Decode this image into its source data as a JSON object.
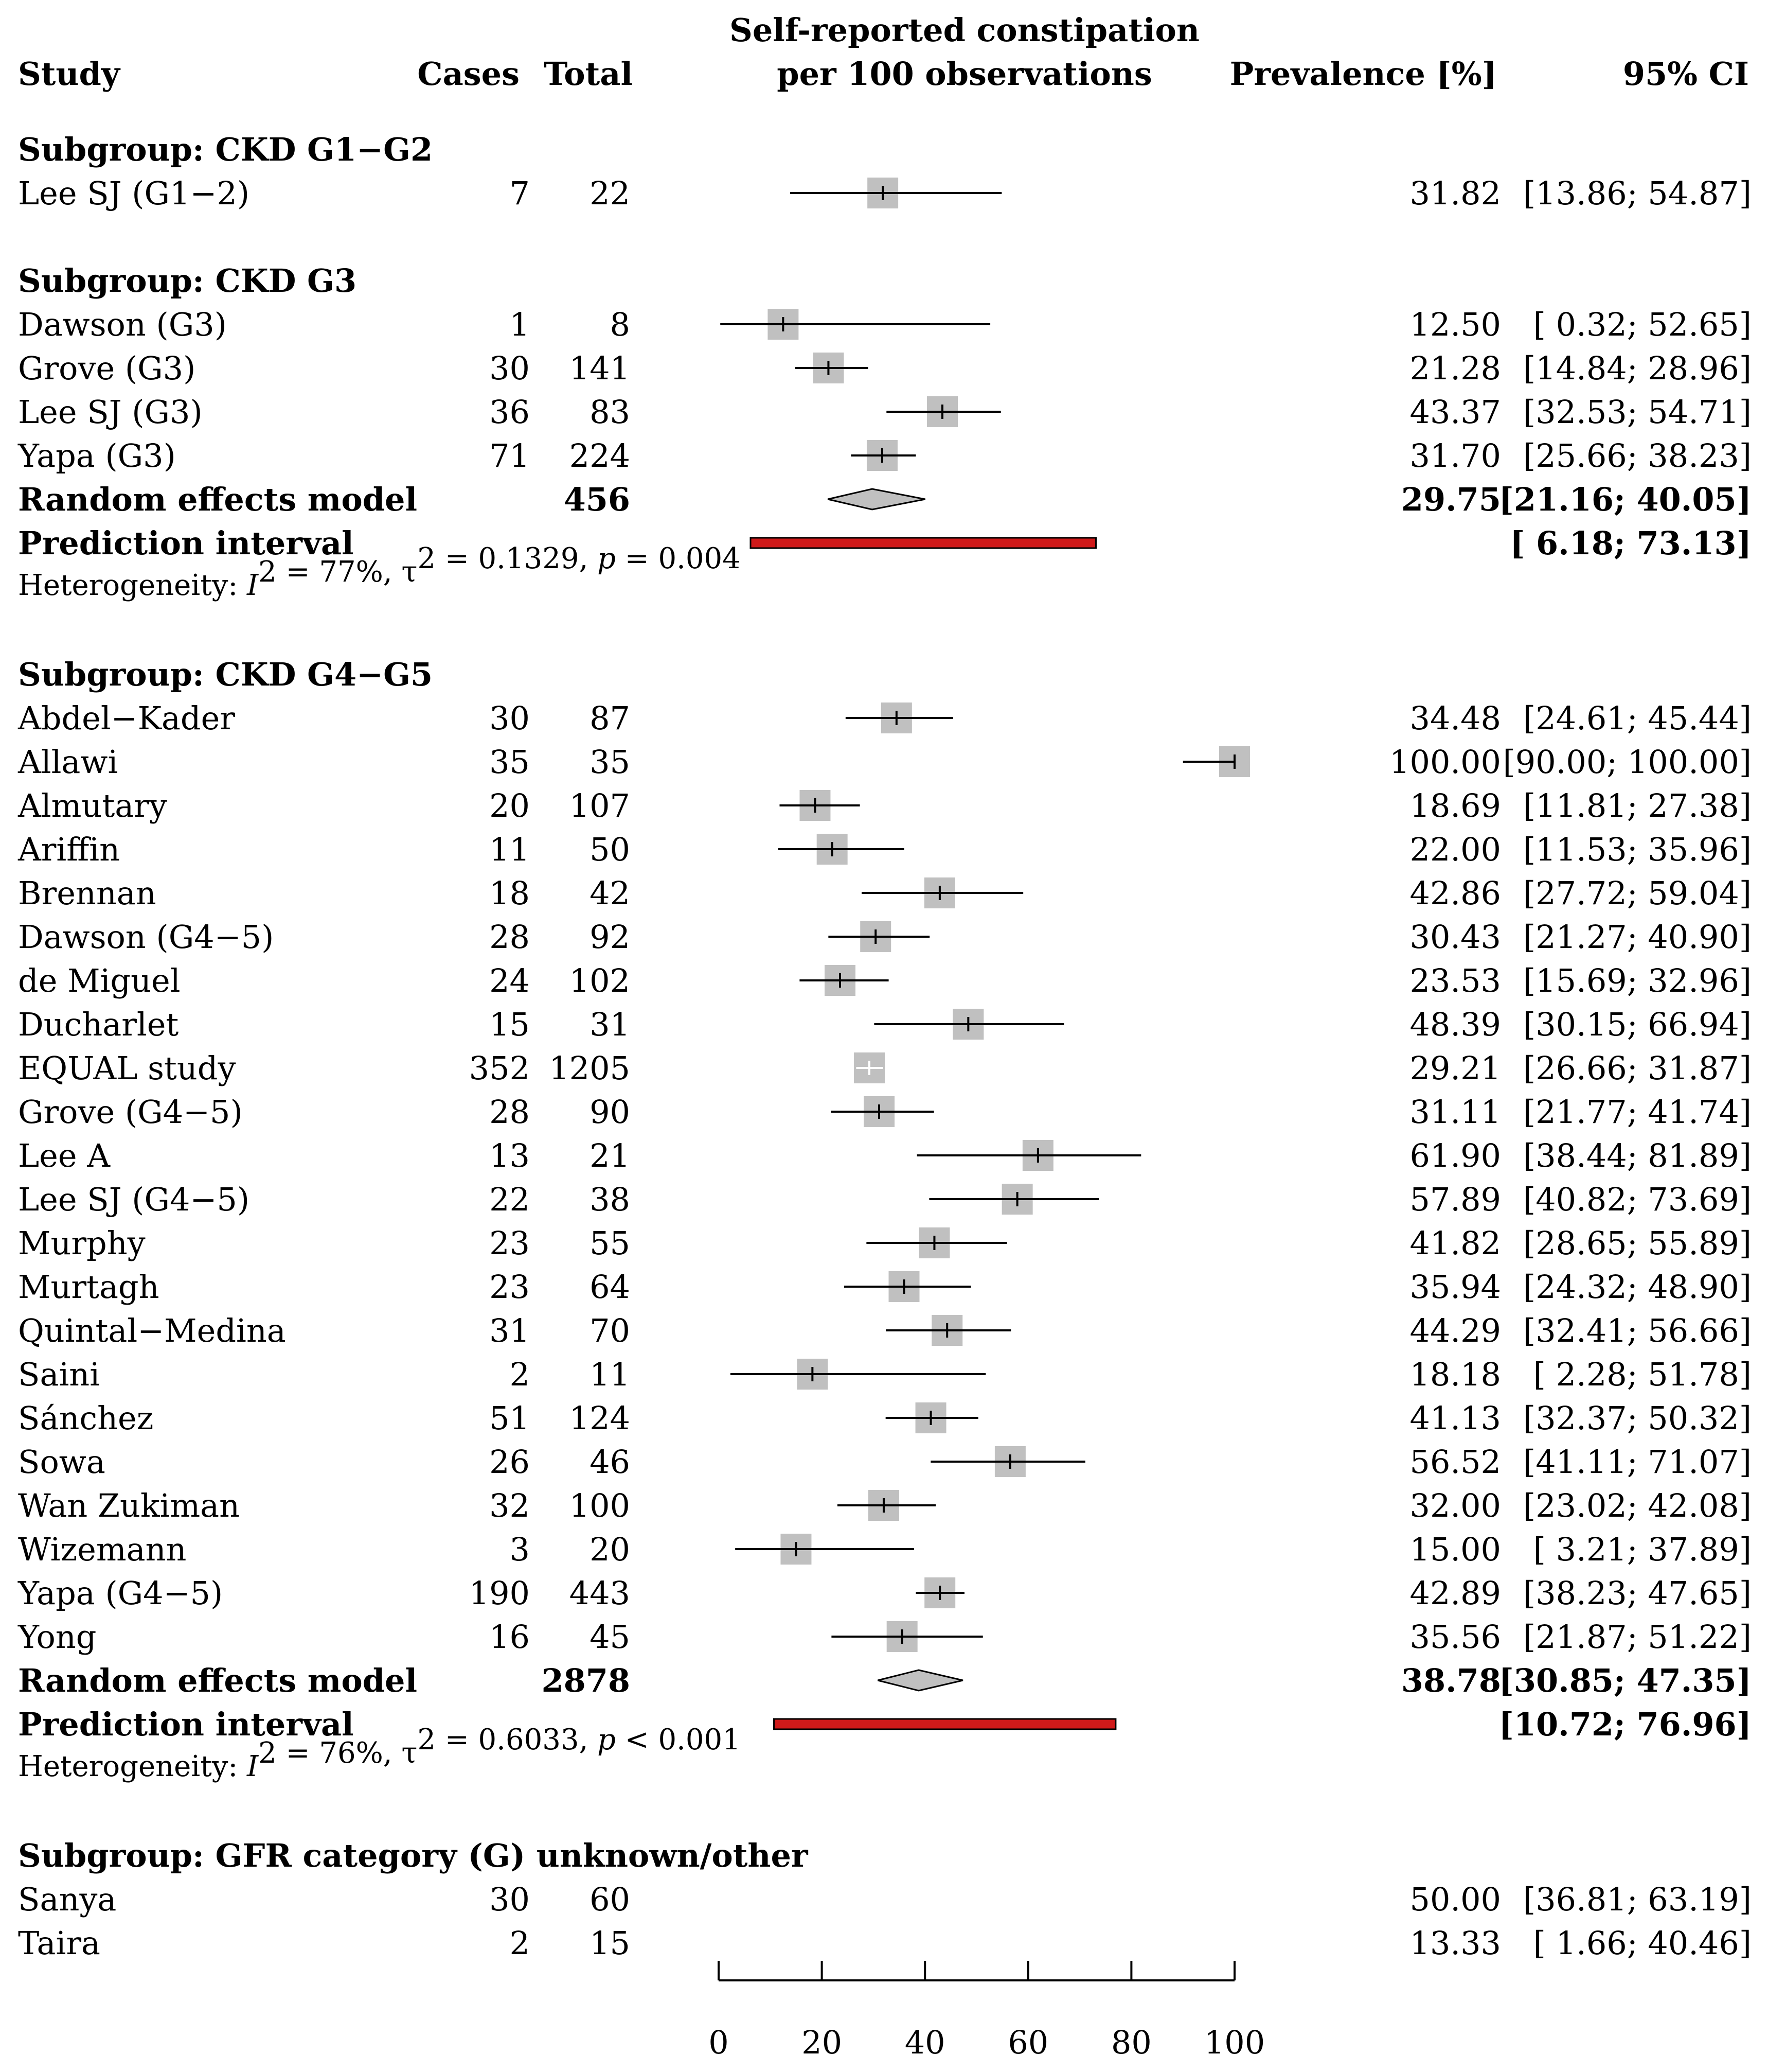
{
  "chart_data": {
    "type": "forest",
    "headers": {
      "study": "Study",
      "cases": "Cases",
      "total": "Total",
      "plot_title_line1": "Self-reported constipation",
      "plot_title_line2": "per 100 observations",
      "prevalence": "Prevalence [%]",
      "ci": "95% CI"
    },
    "x_axis": {
      "min": 0,
      "max": 100,
      "ticks": [
        0,
        20,
        40,
        60,
        80,
        100
      ]
    },
    "colors": {
      "box": "#c0c0c0",
      "diamond": "#c0c0c0",
      "prediction": "#d01a1a"
    },
    "rows": [
      {
        "kind": "subgroup",
        "label": "Subgroup: CKD G1−G2"
      },
      {
        "kind": "study",
        "label": "Lee SJ (G1−2)",
        "cases": "7",
        "total": "22",
        "est": 31.82,
        "lo": 13.86,
        "hi": 54.87,
        "est_text": "31.82",
        "ci_text": "[13.86;  54.87]",
        "w": 0.6
      },
      {
        "kind": "spacer"
      },
      {
        "kind": "subgroup",
        "label": "Subgroup: CKD G3"
      },
      {
        "kind": "study",
        "label": "Dawson (G3)",
        "cases": "1",
        "total": "8",
        "est": 12.5,
        "lo": 0.32,
        "hi": 52.65,
        "est_text": "12.50",
        "ci_text": "[ 0.32;  52.65]",
        "w": 0.6
      },
      {
        "kind": "study",
        "label": "Grove (G3)",
        "cases": "30",
        "total": "141",
        "est": 21.28,
        "lo": 14.84,
        "hi": 28.96,
        "est_text": "21.28",
        "ci_text": "[14.84;  28.96]",
        "w": 0.6
      },
      {
        "kind": "study",
        "label": "Lee SJ (G3)",
        "cases": "36",
        "total": "83",
        "est": 43.37,
        "lo": 32.53,
        "hi": 54.71,
        "est_text": "43.37",
        "ci_text": "[32.53;  54.71]",
        "w": 0.6
      },
      {
        "kind": "study",
        "label": "Yapa (G3)",
        "cases": "71",
        "total": "224",
        "est": 31.7,
        "lo": 25.66,
        "hi": 38.23,
        "est_text": "31.70",
        "ci_text": "[25.66;  38.23]",
        "w": 0.6
      },
      {
        "kind": "pooled",
        "label": "Random effects model",
        "total": "456",
        "est": 29.75,
        "lo": 21.16,
        "hi": 40.05,
        "est_text": "29.75",
        "ci_text": "[21.16;  40.05]"
      },
      {
        "kind": "prediction",
        "label": "Prediction interval",
        "lo": 6.18,
        "hi": 73.13,
        "ci_text": "[ 6.18;  73.13]"
      },
      {
        "kind": "het",
        "prefix": "Heterogeneity: ",
        "i_symbol": "I",
        "sq": "2",
        "i_value": " = 77%,  τ",
        "tau_value": " = 0.1329,  ",
        "p_symbol": "p",
        "p_value": " = 0.004"
      },
      {
        "kind": "spacer"
      },
      {
        "kind": "subgroup",
        "label": "Subgroup: CKD G4−G5"
      },
      {
        "kind": "study",
        "label": "Abdel−Kader",
        "cases": "30",
        "total": "87",
        "est": 34.48,
        "lo": 24.61,
        "hi": 45.44,
        "est_text": "34.48",
        "ci_text": "[24.61;  45.44]",
        "w": 0.6
      },
      {
        "kind": "study",
        "label": "Allawi",
        "cases": "35",
        "total": "35",
        "est": 100.0,
        "lo": 90.0,
        "hi": 100.0,
        "est_text": "100.00",
        "ci_text": "[90.00; 100.00]",
        "w": 0.6
      },
      {
        "kind": "study",
        "label": "Almutary",
        "cases": "20",
        "total": "107",
        "est": 18.69,
        "lo": 11.81,
        "hi": 27.38,
        "est_text": "18.69",
        "ci_text": "[11.81;  27.38]",
        "w": 0.6
      },
      {
        "kind": "study",
        "label": "Ariffin",
        "cases": "11",
        "total": "50",
        "est": 22.0,
        "lo": 11.53,
        "hi": 35.96,
        "est_text": "22.00",
        "ci_text": "[11.53;  35.96]",
        "w": 0.6
      },
      {
        "kind": "study",
        "label": "Brennan",
        "cases": "18",
        "total": "42",
        "est": 42.86,
        "lo": 27.72,
        "hi": 59.04,
        "est_text": "42.86",
        "ci_text": "[27.72;  59.04]",
        "w": 0.6
      },
      {
        "kind": "study",
        "label": "Dawson (G4−5)",
        "cases": "28",
        "total": "92",
        "est": 30.43,
        "lo": 21.27,
        "hi": 40.9,
        "est_text": "30.43",
        "ci_text": "[21.27;  40.90]",
        "w": 0.6
      },
      {
        "kind": "study",
        "label": "de Miguel",
        "cases": "24",
        "total": "102",
        "est": 23.53,
        "lo": 15.69,
        "hi": 32.96,
        "est_text": "23.53",
        "ci_text": "[15.69;  32.96]",
        "w": 0.6
      },
      {
        "kind": "study",
        "label": "Ducharlet",
        "cases": "15",
        "total": "31",
        "est": 48.39,
        "lo": 30.15,
        "hi": 66.94,
        "est_text": "48.39",
        "ci_text": "[30.15;  66.94]",
        "w": 0.6
      },
      {
        "kind": "study",
        "label": "EQUAL study",
        "cases": "352",
        "total": "1205",
        "est": 29.21,
        "lo": 26.66,
        "hi": 31.87,
        "est_text": "29.21",
        "ci_text": "[26.66;  31.87]",
        "w": 0.6,
        "inner": true
      },
      {
        "kind": "study",
        "label": "Grove (G4−5)",
        "cases": "28",
        "total": "90",
        "est": 31.11,
        "lo": 21.77,
        "hi": 41.74,
        "est_text": "31.11",
        "ci_text": "[21.77;  41.74]",
        "w": 0.6
      },
      {
        "kind": "study",
        "label": "Lee A",
        "cases": "13",
        "total": "21",
        "est": 61.9,
        "lo": 38.44,
        "hi": 81.89,
        "est_text": "61.90",
        "ci_text": "[38.44;  81.89]",
        "w": 0.6
      },
      {
        "kind": "study",
        "label": "Lee SJ (G4−5)",
        "cases": "22",
        "total": "38",
        "est": 57.89,
        "lo": 40.82,
        "hi": 73.69,
        "est_text": "57.89",
        "ci_text": "[40.82;  73.69]",
        "w": 0.6
      },
      {
        "kind": "study",
        "label": "Murphy",
        "cases": "23",
        "total": "55",
        "est": 41.82,
        "lo": 28.65,
        "hi": 55.89,
        "est_text": "41.82",
        "ci_text": "[28.65;  55.89]",
        "w": 0.6
      },
      {
        "kind": "study",
        "label": "Murtagh",
        "cases": "23",
        "total": "64",
        "est": 35.94,
        "lo": 24.32,
        "hi": 48.9,
        "est_text": "35.94",
        "ci_text": "[24.32;  48.90]",
        "w": 0.6
      },
      {
        "kind": "study",
        "label": "Quintal−Medina",
        "cases": "31",
        "total": "70",
        "est": 44.29,
        "lo": 32.41,
        "hi": 56.66,
        "est_text": "44.29",
        "ci_text": "[32.41;  56.66]",
        "w": 0.6
      },
      {
        "kind": "study",
        "label": "Saini",
        "cases": "2",
        "total": "11",
        "est": 18.18,
        "lo": 2.28,
        "hi": 51.78,
        "est_text": "18.18",
        "ci_text": "[ 2.28;  51.78]",
        "w": 0.6
      },
      {
        "kind": "study",
        "label": "Sánchez",
        "cases": "51",
        "total": "124",
        "est": 41.13,
        "lo": 32.37,
        "hi": 50.32,
        "est_text": "41.13",
        "ci_text": "[32.37;  50.32]",
        "w": 0.6
      },
      {
        "kind": "study",
        "label": "Sowa",
        "cases": "26",
        "total": "46",
        "est": 56.52,
        "lo": 41.11,
        "hi": 71.07,
        "est_text": "56.52",
        "ci_text": "[41.11;  71.07]",
        "w": 0.6
      },
      {
        "kind": "study",
        "label": "Wan Zukiman",
        "cases": "32",
        "total": "100",
        "est": 32.0,
        "lo": 23.02,
        "hi": 42.08,
        "est_text": "32.00",
        "ci_text": "[23.02;  42.08]",
        "w": 0.6
      },
      {
        "kind": "study",
        "label": "Wizemann",
        "cases": "3",
        "total": "20",
        "est": 15.0,
        "lo": 3.21,
        "hi": 37.89,
        "est_text": "15.00",
        "ci_text": "[ 3.21;  37.89]",
        "w": 0.6
      },
      {
        "kind": "study",
        "label": "Yapa (G4−5)",
        "cases": "190",
        "total": "443",
        "est": 42.89,
        "lo": 38.23,
        "hi": 47.65,
        "est_text": "42.89",
        "ci_text": "[38.23;  47.65]",
        "w": 0.6
      },
      {
        "kind": "study",
        "label": "Yong",
        "cases": "16",
        "total": "45",
        "est": 35.56,
        "lo": 21.87,
        "hi": 51.22,
        "est_text": "35.56",
        "ci_text": "[21.87;  51.22]",
        "w": 0.6
      },
      {
        "kind": "pooled",
        "label": "Random effects model",
        "total": "2878",
        "est": 38.78,
        "lo": 30.85,
        "hi": 47.35,
        "est_text": "38.78",
        "ci_text": "[30.85;  47.35]"
      },
      {
        "kind": "prediction",
        "label": "Prediction interval",
        "lo": 10.72,
        "hi": 76.96,
        "ci_text": "[10.72;  76.96]"
      },
      {
        "kind": "het",
        "prefix": "Heterogeneity: ",
        "i_symbol": "I",
        "sq": "2",
        "i_value": " = 76%,  τ",
        "tau_value": " = 0.6033,  ",
        "p_symbol": "p",
        "p_value": " < 0.001"
      },
      {
        "kind": "spacer"
      },
      {
        "kind": "subgroup",
        "label": "Subgroup: GFR category (G) unknown/other"
      },
      {
        "kind": "study",
        "label": "Sanya",
        "cases": "30",
        "total": "60",
        "est": 50.0,
        "lo": 36.81,
        "hi": 63.19,
        "est_text": "50.00",
        "ci_text": "[36.81;  63.19]",
        "no_mark": true
      },
      {
        "kind": "study",
        "label": "Taira",
        "cases": "2",
        "total": "15",
        "est": 13.33,
        "lo": 1.66,
        "hi": 40.46,
        "est_text": "13.33",
        "ci_text": "[ 1.66;  40.46]",
        "no_mark": true
      }
    ]
  }
}
